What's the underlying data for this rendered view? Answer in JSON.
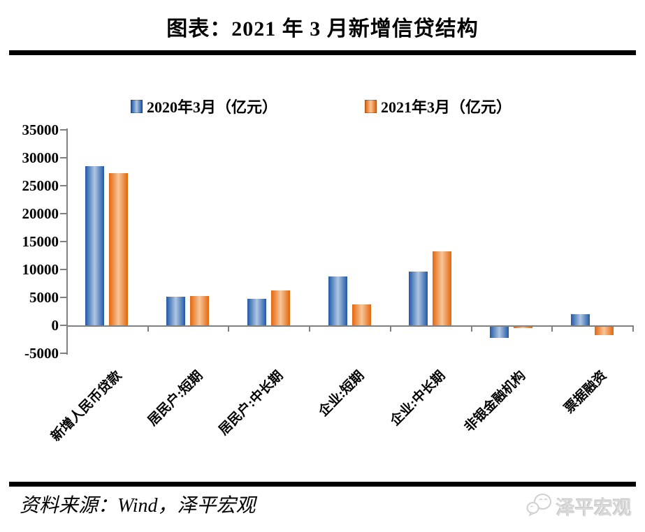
{
  "header": {
    "title": "图表：2021 年 3 月新增信贷结构"
  },
  "chart_data": {
    "type": "bar",
    "title": "图表：2021 年 3 月新增信贷结构",
    "categories": [
      "新增人民币贷款",
      "居民户:短期",
      "居民户:中长期",
      "企业:短期",
      "企业:中长期",
      "非银金融机构",
      "票据融资"
    ],
    "series": [
      {
        "name": "2020年3月（亿元）",
        "color": "#4f81bd",
        "edge_color": "#2059a8",
        "center_color": "#b0c6e2",
        "values": [
          28500,
          5144,
          4738,
          8752,
          9643,
          -1948,
          2049
        ]
      },
      {
        "name": "2021年3月（亿元）",
        "color": "#f79646",
        "edge_color": "#e2660c",
        "center_color": "#f8c69a",
        "values": [
          27300,
          5242,
          6239,
          3748,
          13300,
          -270,
          -1525
        ]
      }
    ],
    "ylim": [
      -5000,
      35000
    ],
    "ytick_step": 5000,
    "ytick_labels": [
      "35000",
      "30000",
      "25000",
      "20000",
      "15000",
      "10000",
      "5000",
      "0",
      "-5000"
    ],
    "xlabel": "",
    "ylabel": "",
    "grid": false,
    "legend_position": "top",
    "axis_color": "#808080"
  },
  "footer": {
    "source_label": "资料来源：Wind，泽平宏观",
    "watermark_text": "泽平宏观",
    "watermark_icon": "chat-bubbles-icon"
  }
}
